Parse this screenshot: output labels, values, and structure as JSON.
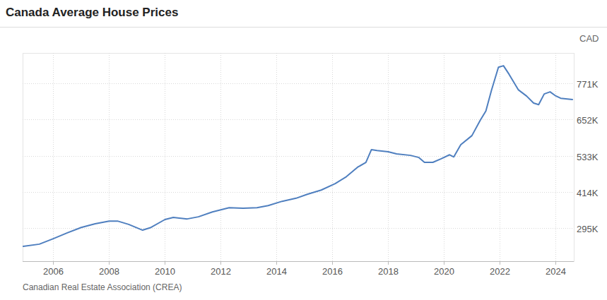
{
  "chart_data": {
    "type": "line",
    "title": "Canada Average House Prices",
    "ylabel": "CAD",
    "source": "Canadian Real Estate Association (CREA)",
    "color": "#4f7fbf",
    "grid": true,
    "x": [
      2004.92,
      2005.5,
      2006.0,
      2006.5,
      2007.0,
      2007.5,
      2008.0,
      2008.3,
      2008.7,
      2009.2,
      2009.5,
      2010.0,
      2010.3,
      2010.8,
      2011.2,
      2011.7,
      2012.3,
      2012.8,
      2013.3,
      2013.7,
      2014.2,
      2014.7,
      2015.1,
      2015.6,
      2016.1,
      2016.5,
      2016.9,
      2017.2,
      2017.4,
      2017.6,
      2018.0,
      2018.3,
      2018.8,
      2019.1,
      2019.3,
      2019.6,
      2019.9,
      2020.2,
      2020.35,
      2020.6,
      2021.0,
      2021.3,
      2021.5,
      2021.7,
      2021.95,
      2022.13,
      2022.33,
      2022.66,
      2022.96,
      2023.21,
      2023.39,
      2023.59,
      2023.8,
      2023.98,
      2024.18,
      2024.6
    ],
    "values": [
      235000,
      242000,
      260000,
      279000,
      297000,
      309000,
      318000,
      318000,
      307000,
      288000,
      297000,
      323000,
      330000,
      325000,
      332000,
      348000,
      362000,
      360000,
      362000,
      369000,
      383000,
      393000,
      406000,
      420000,
      441000,
      464000,
      495000,
      511000,
      553000,
      550000,
      546000,
      539000,
      534000,
      527000,
      511000,
      511000,
      523000,
      536000,
      529000,
      569000,
      599000,
      650000,
      680000,
      748000,
      824000,
      829000,
      801000,
      750000,
      729000,
      706000,
      701000,
      736000,
      743000,
      731000,
      722000,
      718000
    ],
    "xlim": [
      2004.9,
      2024.65
    ],
    "xticks": [
      2006,
      2008,
      2010,
      2012,
      2014,
      2016,
      2018,
      2020,
      2022,
      2024
    ],
    "ylim": [
      186000,
      871000
    ],
    "yticks": [
      {
        "value": 295000,
        "label": "295K"
      },
      {
        "value": 414000,
        "label": "414K"
      },
      {
        "value": 533000,
        "label": "533K"
      },
      {
        "value": 652000,
        "label": "652K"
      },
      {
        "value": 771000,
        "label": "771K"
      }
    ]
  }
}
